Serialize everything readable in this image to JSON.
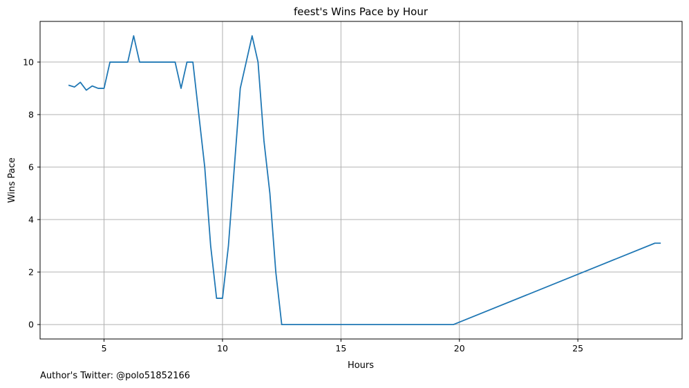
{
  "chart_data": {
    "type": "line",
    "title": "feest's Wins Pace by Hour",
    "xlabel": "Hours",
    "ylabel": "Wins Pace",
    "xlim": [
      2.3,
      29.4
    ],
    "ylim": [
      -0.55,
      11.55
    ],
    "xticks": [
      5,
      10,
      15,
      20,
      25
    ],
    "yticks": [
      0,
      2,
      4,
      6,
      8,
      10
    ],
    "grid": true,
    "series": [
      {
        "color": "#1f77b4",
        "points": [
          [
            3.5,
            9.12
          ],
          [
            3.75,
            9.05
          ],
          [
            4.0,
            9.23
          ],
          [
            4.25,
            8.93
          ],
          [
            4.5,
            9.09
          ],
          [
            4.75,
            9.0
          ],
          [
            5.0,
            9.0
          ],
          [
            5.25,
            10.0
          ],
          [
            5.5,
            10.0
          ],
          [
            5.75,
            10.0
          ],
          [
            6.0,
            10.0
          ],
          [
            6.25,
            11.0
          ],
          [
            6.5,
            10.0
          ],
          [
            6.75,
            10.0
          ],
          [
            7.0,
            10.0
          ],
          [
            7.25,
            10.0
          ],
          [
            7.5,
            10.0
          ],
          [
            7.75,
            10.0
          ],
          [
            8.0,
            10.0
          ],
          [
            8.25,
            9.0
          ],
          [
            8.5,
            10.0
          ],
          [
            8.75,
            10.0
          ],
          [
            9.0,
            8.0
          ],
          [
            9.25,
            6.0
          ],
          [
            9.5,
            3.0
          ],
          [
            9.75,
            1.0
          ],
          [
            10.0,
            1.0
          ],
          [
            10.25,
            3.0
          ],
          [
            10.5,
            6.0
          ],
          [
            10.75,
            9.0
          ],
          [
            11.0,
            10.0
          ],
          [
            11.25,
            11.0
          ],
          [
            11.5,
            10.0
          ],
          [
            11.75,
            7.0
          ],
          [
            12.0,
            5.0
          ],
          [
            12.25,
            2.0
          ],
          [
            12.5,
            0.0
          ],
          [
            19.75,
            0.0
          ],
          [
            28.25,
            3.1
          ],
          [
            28.5,
            3.1
          ]
        ]
      }
    ]
  },
  "footer": "Author's Twitter: @polo51852166"
}
